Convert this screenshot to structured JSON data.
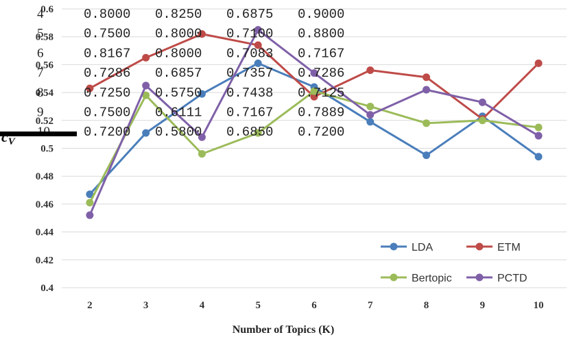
{
  "chart_data": {
    "type": "line",
    "title": "",
    "xlabel": "Number of Topics (K)",
    "ylabel": "c_V",
    "ylabel_main": "c",
    "ylabel_sub": "V",
    "categories": [
      "2",
      "3",
      "4",
      "5",
      "6",
      "7",
      "8",
      "9",
      "10"
    ],
    "ylim": [
      0.4,
      0.6
    ],
    "yticks": [
      "0.4",
      "0.42",
      "0.44",
      "0.46",
      "0.48",
      "0.5",
      "0.52",
      "0.54",
      "0.56",
      "0.58",
      "0.6"
    ],
    "grid": true,
    "legend_position": "bottom-right",
    "series": [
      {
        "name": "LDA",
        "color": "#4a7ebb",
        "values": [
          0.467,
          0.511,
          0.539,
          0.561,
          0.544,
          0.519,
          0.495,
          0.523,
          0.494
        ]
      },
      {
        "name": "ETM",
        "color": "#be4b48",
        "values": [
          0.543,
          0.565,
          0.582,
          0.574,
          0.537,
          0.556,
          0.551,
          0.521,
          0.561
        ]
      },
      {
        "name": "Bertopic",
        "color": "#9bbb59",
        "values": [
          0.461,
          0.538,
          0.496,
          0.511,
          0.541,
          0.53,
          0.518,
          0.52,
          0.515
        ]
      },
      {
        "name": "PCTD",
        "color": "#7f60a8",
        "values": [
          0.452,
          0.545,
          0.508,
          0.585,
          0.554,
          0.524,
          0.542,
          0.533,
          0.509
        ]
      }
    ],
    "overlay_table": {
      "row_indices": [
        "4",
        "5",
        "6",
        "7",
        "8",
        "9",
        "10"
      ],
      "rows": [
        [
          "0.8000",
          "0.8250",
          "0.6875",
          "0.9000"
        ],
        [
          "0.7500",
          "0.8000",
          "0.7100",
          "0.8800"
        ],
        [
          "0.8167",
          "0.8000",
          "0.7083",
          "0.7167"
        ],
        [
          "0.7286",
          "0.6857",
          "0.7357",
          "0.7286"
        ],
        [
          "0.7250",
          "0.5750",
          "0.7438",
          "0.7125"
        ],
        [
          "0.7500",
          "0.6111",
          "0.7167",
          "0.7889"
        ],
        [
          "0.7200",
          "0.5800",
          "0.6850",
          "0.7200"
        ]
      ],
      "highlight_color": "#e03030",
      "highlights": [
        [
          4,
          2
        ],
        [
          5,
          1
        ]
      ]
    }
  }
}
